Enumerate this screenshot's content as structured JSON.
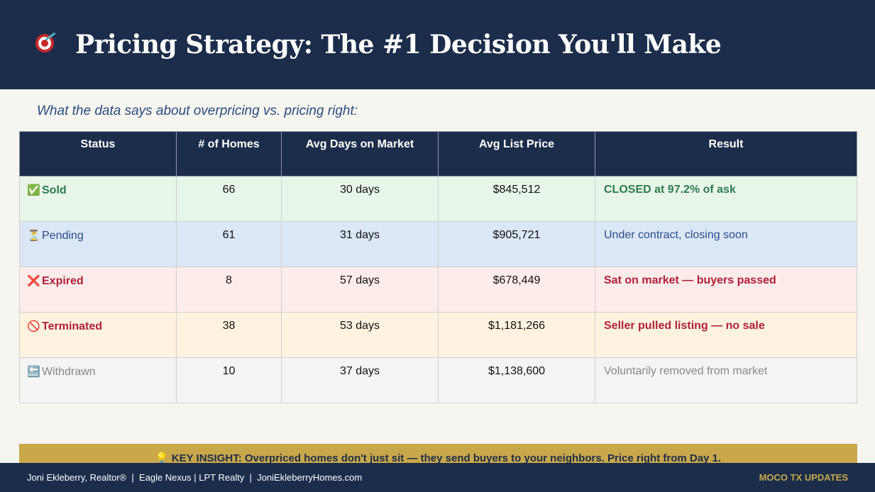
{
  "header": {
    "icon": "dart-target-icon",
    "title": "Pricing Strategy: The #1 Decision You'll Make"
  },
  "subtitle": "What the data says about overpricing vs. pricing right:",
  "table": {
    "columns": [
      "Status",
      "# of Homes",
      "Avg Days on Market",
      "Avg List Price",
      "Result"
    ],
    "rows": [
      {
        "icon": "✅",
        "status": "Sold",
        "homes": "66",
        "days": "30 days",
        "price": "$845,512",
        "result": "CLOSED at 97.2% of ask",
        "bg": "#e8f5e9",
        "color": "#2e7d4f",
        "bold": true
      },
      {
        "icon": "⏳",
        "status": "Pending",
        "homes": "61",
        "days": "31 days",
        "price": "$905,721",
        "result": "Under contract, closing soon",
        "bg": "#dbe7f6",
        "color": "#2a4d8c",
        "bold": false
      },
      {
        "icon": "❌",
        "status": "Expired",
        "homes": "8",
        "days": "57 days",
        "price": "$678,449",
        "result": "Sat on market — buyers passed",
        "bg": "#fdecea",
        "color": "#b0203a",
        "bold": true
      },
      {
        "icon": "🚫",
        "status": "Terminated",
        "homes": "38",
        "days": "53 days",
        "price": "$1,181,266",
        "result": "Seller pulled listing — no sale",
        "bg": "#fff3e0",
        "color": "#b0203a",
        "bold": true
      },
      {
        "icon": "🔙",
        "status": "Withdrawn",
        "homes": "10",
        "days": "37 days",
        "price": "$1,138,600",
        "result": "Voluntarily removed from market",
        "bg": "#f4f4f4",
        "color": "#888888",
        "bold": false
      }
    ]
  },
  "insight": {
    "icon": "💡",
    "text": "KEY INSIGHT: Overpriced homes don't just sit — they send buyers to your neighbors. Price right from Day 1."
  },
  "footer": {
    "left": "Joni Ekleberry, Realtor®  |  Eagle Nexus | LPT Realty  |  JoniEkleberryHomes.com",
    "right": "MOCO TX UPDATES"
  }
}
